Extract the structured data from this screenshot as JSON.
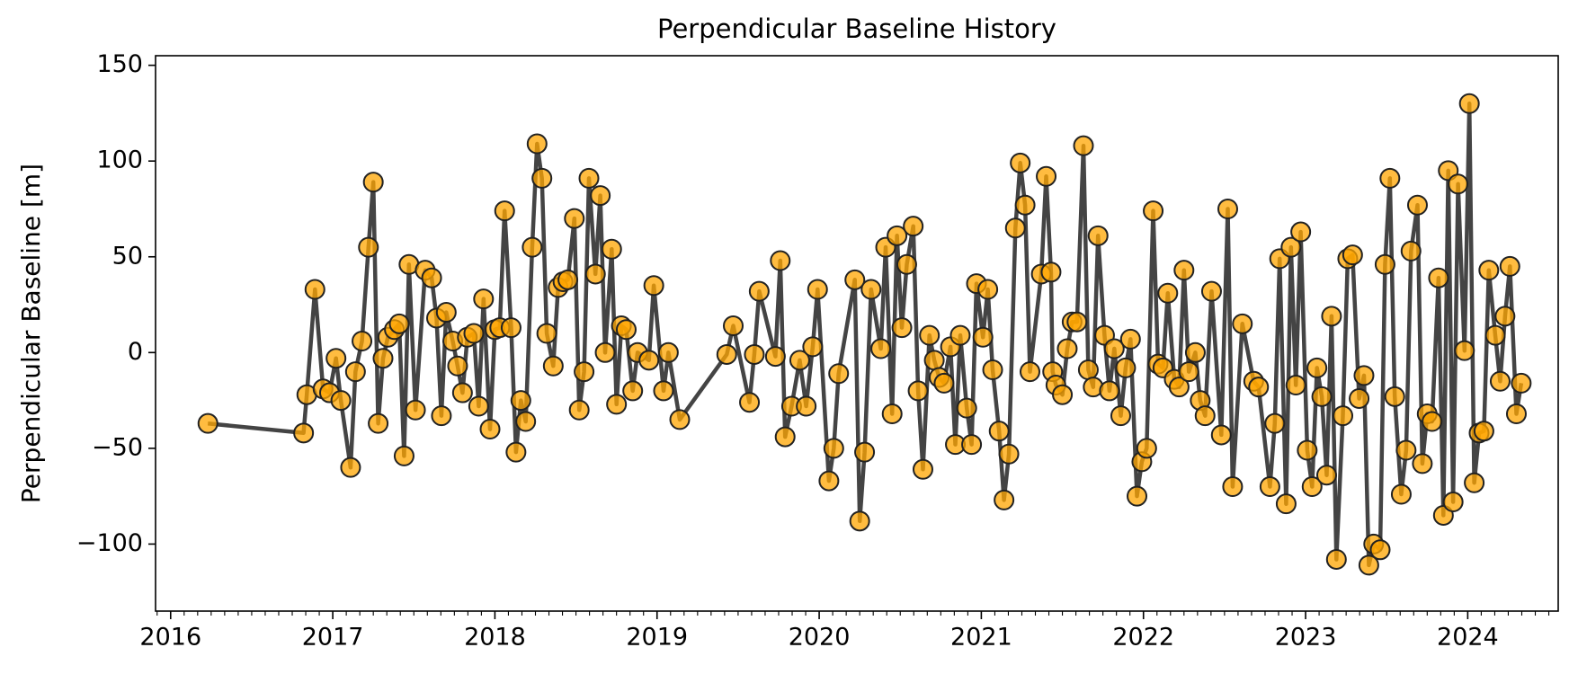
{
  "chart_data": {
    "type": "line",
    "title": "Perpendicular Baseline History",
    "y_label": "Perpendicular Baseline [m]",
    "line_color": "#444444",
    "marker_color": "#ffa500",
    "marker_edge_color": "#222222",
    "xlim": [
      2015.907,
      2024.558
    ],
    "ylim": [
      -135,
      155
    ],
    "xticks": [
      2016,
      2017,
      2018,
      2019,
      2020,
      2021,
      2022,
      2023,
      2024
    ],
    "yticks": [
      {
        "value": -100,
        "label": "−100"
      },
      {
        "value": -50,
        "label": "−50"
      },
      0,
      50,
      100,
      150
    ],
    "x": [
      2016.23,
      2016.82,
      2016.84,
      2016.89,
      2016.94,
      2016.98,
      2017.02,
      2017.05,
      2017.11,
      2017.14,
      2017.18,
      2017.22,
      2017.25,
      2017.28,
      2017.31,
      2017.34,
      2017.38,
      2017.41,
      2017.44,
      2017.47,
      2017.51,
      2017.57,
      2017.61,
      2017.64,
      2017.67,
      2017.7,
      2017.74,
      2017.77,
      2017.8,
      2017.83,
      2017.87,
      2017.9,
      2017.93,
      2017.97,
      2018.0,
      2018.03,
      2018.06,
      2018.1,
      2018.13,
      2018.16,
      2018.19,
      2018.23,
      2018.26,
      2018.29,
      2018.32,
      2018.36,
      2018.39,
      2018.42,
      2018.45,
      2018.49,
      2018.52,
      2018.55,
      2018.58,
      2018.62,
      2018.65,
      2018.68,
      2018.72,
      2018.75,
      2018.78,
      2018.81,
      2018.85,
      2018.88,
      2018.95,
      2018.98,
      2019.04,
      2019.07,
      2019.14,
      2019.43,
      2019.47,
      2019.57,
      2019.6,
      2019.63,
      2019.73,
      2019.76,
      2019.79,
      2019.83,
      2019.88,
      2019.92,
      2019.96,
      2019.99,
      2020.06,
      2020.09,
      2020.12,
      2020.22,
      2020.25,
      2020.28,
      2020.32,
      2020.38,
      2020.41,
      2020.45,
      2020.48,
      2020.51,
      2020.54,
      2020.58,
      2020.61,
      2020.64,
      2020.68,
      2020.71,
      2020.74,
      2020.77,
      2020.81,
      2020.84,
      2020.87,
      2020.91,
      2020.94,
      2020.97,
      2021.01,
      2021.04,
      2021.07,
      2021.11,
      2021.14,
      2021.17,
      2021.21,
      2021.24,
      2021.27,
      2021.3,
      2021.37,
      2021.4,
      2021.43,
      2021.44,
      2021.46,
      2021.5,
      2021.53,
      2021.56,
      2021.59,
      2021.63,
      2021.66,
      2021.69,
      2021.72,
      2021.76,
      2021.79,
      2021.82,
      2021.86,
      2021.89,
      2021.92,
      2021.96,
      2021.99,
      2022.02,
      2022.06,
      2022.09,
      2022.12,
      2022.15,
      2022.19,
      2022.22,
      2022.25,
      2022.28,
      2022.32,
      2022.35,
      2022.38,
      2022.42,
      2022.48,
      2022.52,
      2022.55,
      2022.61,
      2022.68,
      2022.71,
      2022.78,
      2022.81,
      2022.84,
      2022.88,
      2022.91,
      2022.94,
      2022.97,
      2023.01,
      2023.04,
      2023.07,
      2023.1,
      2023.13,
      2023.16,
      2023.19,
      2023.23,
      2023.26,
      2023.29,
      2023.33,
      2023.36,
      2023.39,
      2023.42,
      2023.46,
      2023.49,
      2023.52,
      2023.55,
      2023.59,
      2023.62,
      2023.65,
      2023.69,
      2023.72,
      2023.75,
      2023.78,
      2023.82,
      2023.85,
      2023.88,
      2023.91,
      2023.94,
      2023.98,
      2024.01,
      2024.04,
      2024.07,
      2024.1,
      2024.13,
      2024.17,
      2024.2,
      2024.23,
      2024.26,
      2024.3,
      2024.33
    ],
    "values": [
      -37,
      -42,
      -22,
      33,
      -19,
      -21,
      -3,
      -25,
      -60,
      -10,
      6,
      55,
      89,
      -37,
      -3,
      8,
      12,
      15,
      -54,
      46,
      -30,
      43,
      39,
      18,
      -33,
      21,
      6,
      -7,
      -21,
      8,
      10,
      -28,
      28,
      -40,
      12,
      13,
      74,
      13,
      -52,
      -25,
      -36,
      55,
      109,
      91,
      10,
      -7,
      34,
      37,
      38,
      70,
      -30,
      -10,
      91,
      41,
      82,
      0,
      54,
      -27,
      14,
      12,
      -20,
      0,
      -4,
      35,
      -20,
      0,
      -35,
      -1,
      14,
      -26,
      -1,
      32,
      -2,
      48,
      -44,
      -28,
      -4,
      -28,
      3,
      33,
      -67,
      -50,
      -11,
      38,
      -88,
      -52,
      33,
      2,
      55,
      -32,
      61,
      13,
      46,
      66,
      -20,
      -61,
      9,
      -4,
      -13,
      -16,
      3,
      -48,
      9,
      -29,
      -48,
      36,
      8,
      33,
      -9,
      -41,
      -77,
      -53,
      65,
      99,
      77,
      -10,
      41,
      92,
      42,
      -10,
      -17,
      -22,
      2,
      16,
      16,
      108,
      -9,
      -18,
      61,
      9,
      -20,
      2,
      -33,
      -8,
      7,
      -75,
      -57,
      -50,
      74,
      -6,
      -8,
      31,
      -14,
      -18,
      43,
      -10,
      0,
      -25,
      -33,
      32,
      -43,
      75,
      -70,
      15,
      -15,
      -18,
      -70,
      -37,
      49,
      -79,
      55,
      -17,
      63,
      -51,
      -70,
      -8,
      -23,
      -64,
      19,
      -108,
      -33,
      49,
      51,
      -24,
      -12,
      -111,
      -100,
      -103,
      46,
      91,
      -23,
      -74,
      -51,
      53,
      77,
      -58,
      -32,
      -36,
      39,
      -85,
      95,
      -78,
      88,
      1,
      130,
      -68,
      -42,
      -41,
      43,
      9,
      -15,
      19,
      45,
      -32,
      -16
    ]
  }
}
